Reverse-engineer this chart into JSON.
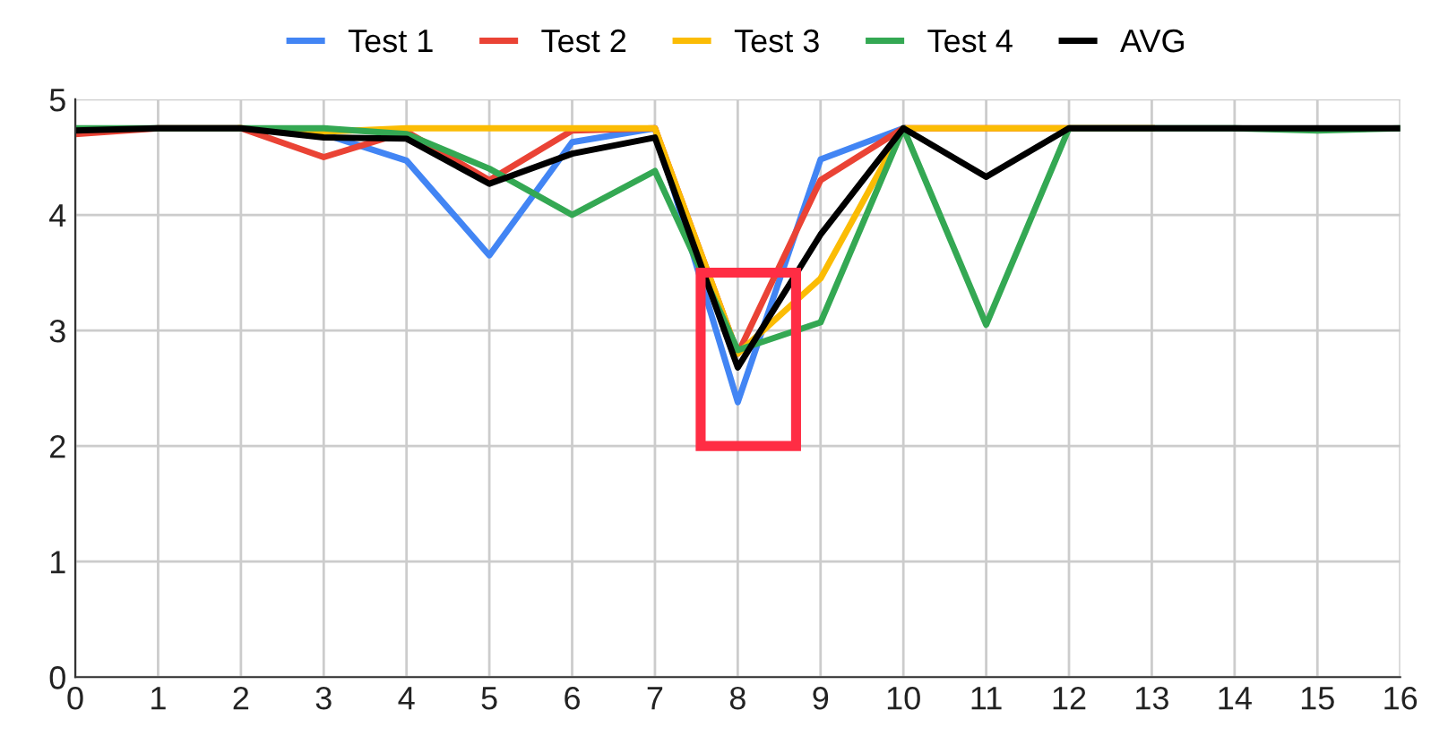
{
  "chart_data": {
    "type": "line",
    "x": [
      0,
      1,
      2,
      3,
      4,
      5,
      6,
      7,
      8,
      9,
      10,
      11,
      12,
      13,
      14,
      15,
      16
    ],
    "series": [
      {
        "name": "Test 1",
        "color": "#4285f4",
        "values": [
          null,
          null,
          null,
          4.7,
          4.47,
          3.65,
          4.63,
          4.75,
          2.38,
          4.48,
          4.75,
          null,
          null,
          null,
          null,
          null,
          null
        ]
      },
      {
        "name": "Test 2",
        "color": "#ea4335",
        "values": [
          4.7,
          4.75,
          4.75,
          4.5,
          4.72,
          4.3,
          4.73,
          4.75,
          2.8,
          4.3,
          4.75,
          4.75,
          4.75,
          4.75,
          null,
          null,
          null
        ]
      },
      {
        "name": "Test 3",
        "color": "#fbbc04",
        "values": [
          null,
          null,
          4.75,
          4.72,
          4.75,
          4.75,
          4.75,
          4.75,
          2.8,
          3.45,
          4.75,
          4.75,
          4.75,
          4.75,
          null,
          null,
          null
        ]
      },
      {
        "name": "Test 4",
        "color": "#34a853",
        "values": [
          4.75,
          4.75,
          4.75,
          4.75,
          4.7,
          4.4,
          4.0,
          4.38,
          2.83,
          3.07,
          4.75,
          3.05,
          4.75,
          4.75,
          4.75,
          4.73,
          4.75
        ]
      },
      {
        "name": "AVG",
        "color": "#000000",
        "values": [
          4.73,
          4.75,
          4.75,
          4.67,
          4.66,
          4.27,
          4.53,
          4.67,
          2.68,
          3.83,
          4.75,
          4.33,
          4.75,
          4.75,
          4.75,
          4.75,
          4.75
        ]
      }
    ],
    "xlim": [
      0,
      16
    ],
    "xticks": [
      0,
      1,
      2,
      3,
      4,
      5,
      6,
      7,
      8,
      9,
      10,
      11,
      12,
      13,
      14,
      15,
      16
    ],
    "ylim": [
      0,
      5
    ],
    "yticks": [
      0,
      1,
      2,
      3,
      4,
      5
    ],
    "grid": true,
    "legend": "top",
    "marker": "none",
    "line_style": "solid"
  }
}
